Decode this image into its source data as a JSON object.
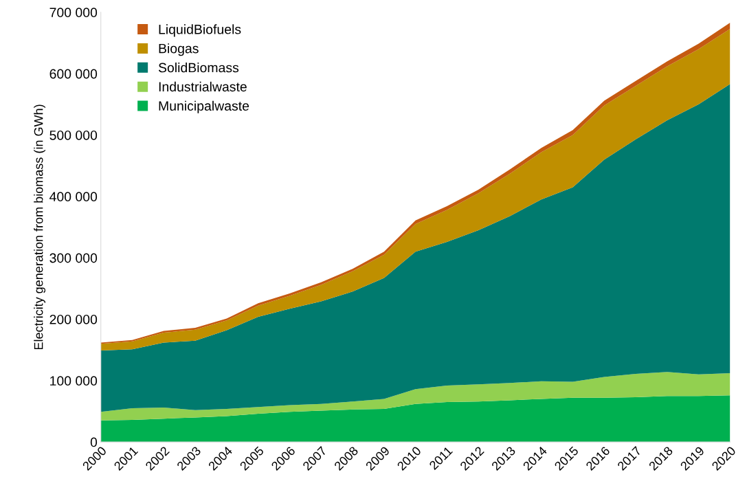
{
  "chart_data": {
    "type": "area",
    "stacked": true,
    "ylabel": "Electricity generation from biomass (in GWh)",
    "categories": [
      "2000",
      "2001",
      "2002",
      "2003",
      "2004",
      "2005",
      "2006",
      "2007",
      "2008",
      "2009",
      "2010",
      "2011",
      "2012",
      "2013",
      "2014",
      "2015",
      "2016",
      "2017",
      "2018",
      "2019",
      "2020"
    ],
    "series": [
      {
        "name": "Municipalwaste",
        "color": "#00b050",
        "values": [
          35000,
          36000,
          38000,
          40000,
          42000,
          46000,
          49000,
          51000,
          53000,
          54000,
          62000,
          65000,
          66000,
          68000,
          70000,
          72000,
          72000,
          73000,
          75000,
          75000,
          76000
        ]
      },
      {
        "name": "Industrialwaste",
        "color": "#92d050",
        "values": [
          14000,
          19000,
          18000,
          12000,
          12000,
          11000,
          11000,
          11000,
          13000,
          16000,
          24000,
          27000,
          28000,
          28000,
          29000,
          26000,
          34000,
          38000,
          39000,
          35000,
          36000
        ]
      },
      {
        "name": "SolidBiomass",
        "color": "#007a6e",
        "values": [
          100000,
          96000,
          106000,
          113000,
          128000,
          147000,
          157000,
          167000,
          179000,
          197000,
          224000,
          234000,
          251000,
          272000,
          296000,
          317000,
          354000,
          382000,
          410000,
          440000,
          471000
        ]
      },
      {
        "name": "Biogas",
        "color": "#bf8f00",
        "values": [
          11000,
          13000,
          16000,
          18000,
          16000,
          18000,
          21000,
          27000,
          33000,
          38000,
          45000,
          52000,
          60000,
          69000,
          77000,
          85000,
          88000,
          87000,
          88000,
          90000,
          90000
        ]
      },
      {
        "name": "LiquidBiofuels",
        "color": "#c55a11",
        "values": [
          2000,
          2000,
          3000,
          3000,
          3000,
          4000,
          4000,
          4000,
          4000,
          5000,
          6000,
          6000,
          6000,
          7000,
          7000,
          8000,
          8000,
          8000,
          8000,
          9000,
          10000
        ]
      }
    ],
    "ylim": [
      0,
      700000
    ],
    "yticks": [
      {
        "value": 0,
        "label": "0"
      },
      {
        "value": 100000,
        "label": "100 000"
      },
      {
        "value": 200000,
        "label": "200 000"
      },
      {
        "value": 300000,
        "label": "300 000"
      },
      {
        "value": 400000,
        "label": "400 000"
      },
      {
        "value": 500000,
        "label": "500 000"
      },
      {
        "value": 600000,
        "label": "600 000"
      },
      {
        "value": 700000,
        "label": "700 000"
      }
    ],
    "legend": "top left",
    "grid": false
  }
}
